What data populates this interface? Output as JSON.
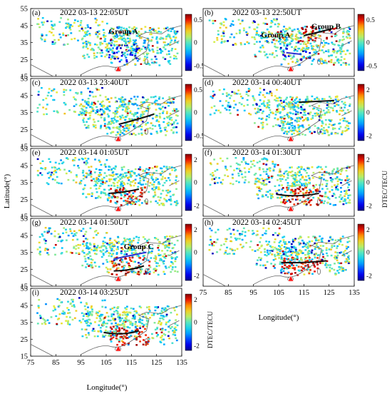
{
  "figure": {
    "xlabel": "Longitude(°)",
    "ylabel": "Latitude(°)",
    "colorbar_label": "DTEC/TECU",
    "x_ticks": [
      "75",
      "85",
      "95",
      "105",
      "115",
      "125",
      "135"
    ],
    "y_ticks": [
      "55",
      "45",
      "35",
      "25",
      "15"
    ],
    "colors": {
      "low": "#0000b0",
      "mid": "#3fd3c3",
      "high": "#8b0000",
      "wave_line": "#111111",
      "marker": "#ff1a1a"
    }
  },
  "panels": [
    {
      "id": "a",
      "letter": "(a)",
      "title": "2022 03-13 22:05UT",
      "group_label": "Group A",
      "cbar_ticks": [
        "0.5",
        "0",
        "-0.5"
      ]
    },
    {
      "id": "b",
      "letter": "(b)",
      "title": "2022 03-13 22:50UT",
      "group_label": "Group A",
      "group_label_2": "Group B",
      "cbar_ticks": [
        "0.5",
        "0",
        "-0.5"
      ]
    },
    {
      "id": "c",
      "letter": "(c)",
      "title": "2022 03-13 23:40UT",
      "cbar_ticks": [
        "0.5",
        "0",
        "-0.5"
      ]
    },
    {
      "id": "d",
      "letter": "(d)",
      "title": "2022 03-14 00:40UT",
      "cbar_ticks": [
        "2",
        "0",
        "-2"
      ]
    },
    {
      "id": "e",
      "letter": "(e)",
      "title": "2022 03-14 01:05UT",
      "cbar_ticks": [
        "2",
        "0",
        "-2"
      ]
    },
    {
      "id": "f",
      "letter": "(f)",
      "title": "2022 03-14 01:30UT",
      "cbar_ticks": [
        "2",
        "0",
        "-2"
      ]
    },
    {
      "id": "g",
      "letter": "(g)",
      "title": "2022 03-14 01:50UT",
      "group_label": "Group C",
      "cbar_ticks": [
        "2",
        "0",
        "-2"
      ]
    },
    {
      "id": "h",
      "letter": "(h)",
      "title": "2022 03-14 02:45UT",
      "cbar_ticks": [
        "2",
        "0",
        "-2"
      ]
    },
    {
      "id": "i",
      "letter": "(i)",
      "title": "2022 03-14 03:25UT",
      "cbar_ticks": [
        "2",
        "0",
        "-2"
      ]
    }
  ]
}
